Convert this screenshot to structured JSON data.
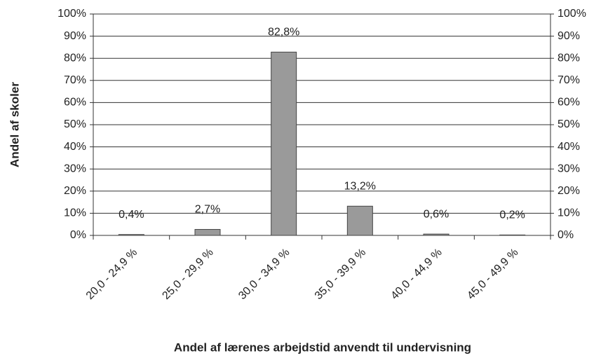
{
  "chart_data": {
    "type": "bar",
    "x_label": "Andel af lærenes arbejdstid  anvendt til undervisning",
    "y_label": "Andel af skoler",
    "categories": [
      "20,0 - 24,9 %",
      "25,0 - 29,9 %",
      "30,0 - 34,9 %",
      "35,0 - 39,9 %",
      "40,0 - 44,9 %",
      "45,0 - 49,9 %"
    ],
    "values": [
      0.4,
      2.7,
      82.8,
      13.2,
      0.6,
      0.2
    ],
    "value_labels": [
      "0,4%",
      "2,7%",
      "82,8%",
      "13,2%",
      "0,6%",
      "0,2%"
    ],
    "color": "#9a9a9a",
    "ylim": [
      0,
      100
    ],
    "yticks": [
      {
        "value": 0,
        "label": "0%"
      },
      {
        "value": 10,
        "label": "10%"
      },
      {
        "value": 20,
        "label": "20%"
      },
      {
        "value": 30,
        "label": "30%"
      },
      {
        "value": 40,
        "label": "40%"
      },
      {
        "value": 50,
        "label": "50%"
      },
      {
        "value": 60,
        "label": "60%"
      },
      {
        "value": 70,
        "label": "70%"
      },
      {
        "value": 80,
        "label": "80%"
      },
      {
        "value": 90,
        "label": "90%"
      },
      {
        "value": 100,
        "label": "100%"
      }
    ],
    "y2lim": [
      0,
      100
    ],
    "y2ticks": [
      {
        "value": 0,
        "label": "0%"
      },
      {
        "value": 10,
        "label": "10%"
      },
      {
        "value": 20,
        "label": "20%"
      },
      {
        "value": 30,
        "label": "30%"
      },
      {
        "value": 40,
        "label": "40%"
      },
      {
        "value": 50,
        "label": "50%"
      },
      {
        "value": 60,
        "label": "60%"
      },
      {
        "value": 70,
        "label": "70%"
      },
      {
        "value": 80,
        "label": "80%"
      },
      {
        "value": 90,
        "label": "90%"
      },
      {
        "value": 100,
        "label": "100%"
      }
    ],
    "grid": true
  }
}
